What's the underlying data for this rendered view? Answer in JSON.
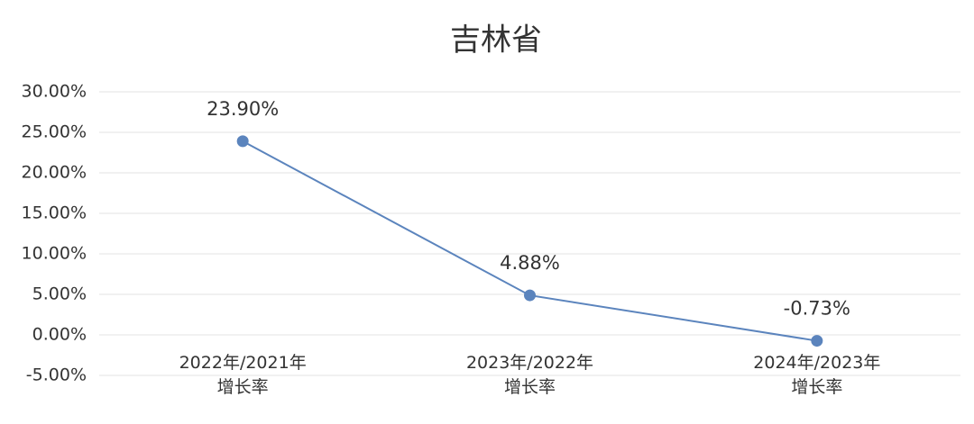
{
  "chart_data": {
    "type": "line",
    "title": "吉林省",
    "categories": [
      "2022年/2021年\n增长率",
      "2023年/2022年\n增长率",
      "2024年/2023年\n增长率"
    ],
    "series": [
      {
        "color": "#5b84bd",
        "values": [
          23.9,
          4.88,
          -0.73
        ],
        "value_labels": [
          "23.90%",
          "4.88%",
          "-0.73%"
        ]
      }
    ],
    "ylim": [
      -5,
      30
    ],
    "yticks": [
      {
        "value": -5,
        "label": "-5.00%"
      },
      {
        "value": 0,
        "label": "0.00%"
      },
      {
        "value": 5,
        "label": "5.00%"
      },
      {
        "value": 10,
        "label": "10.00%"
      },
      {
        "value": 15,
        "label": "15.00%"
      },
      {
        "value": 20,
        "label": "20.00%"
      },
      {
        "value": 25,
        "label": "25.00%"
      },
      {
        "value": 30,
        "label": "30.00%"
      }
    ],
    "grid": true
  }
}
